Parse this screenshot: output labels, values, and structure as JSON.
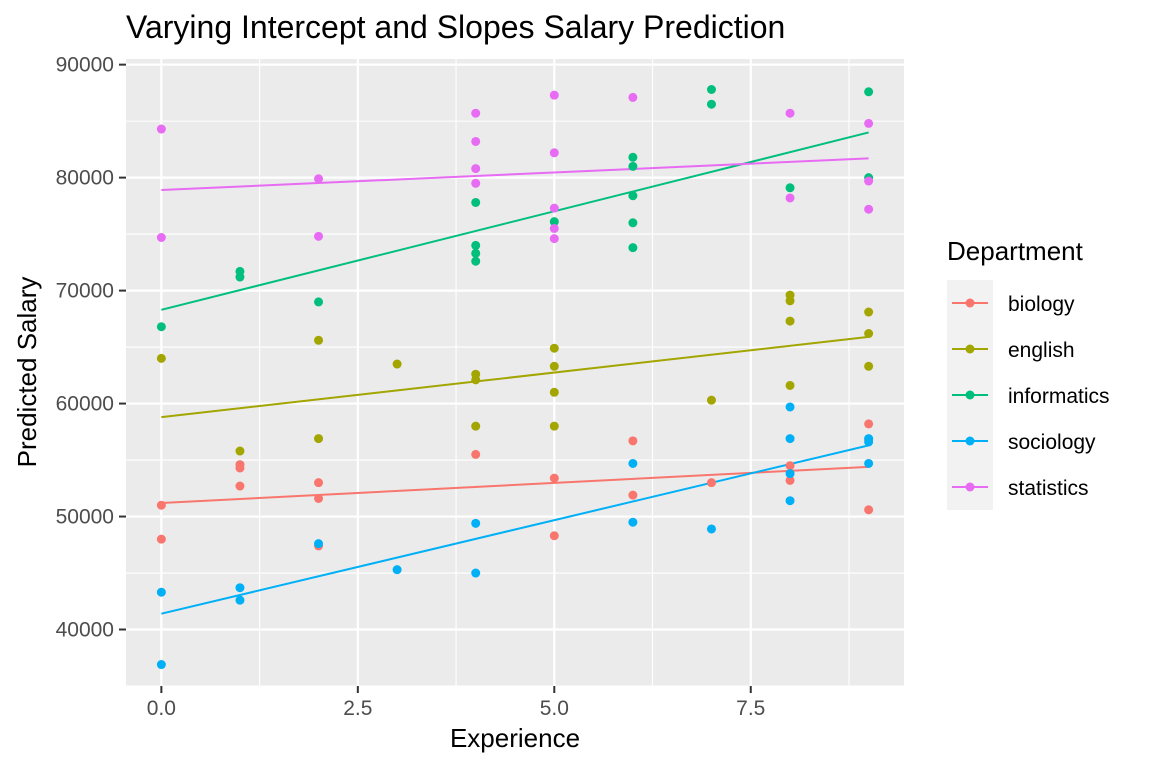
{
  "chart_data": {
    "type": "scatter",
    "title": "Varying Intercept and Slopes Salary Prediction",
    "xlabel": "Experience",
    "ylabel": "Predicted Salary",
    "xlim": [
      -0.45,
      9.45
    ],
    "ylim": [
      35000,
      90500
    ],
    "x_ticks": [
      0,
      2.5,
      5,
      7.5
    ],
    "x_tick_labels": [
      "0.0",
      "2.5",
      "5.0",
      "7.5"
    ],
    "y_ticks": [
      40000,
      50000,
      60000,
      70000,
      80000,
      90000
    ],
    "y_tick_labels": [
      "40000",
      "50000",
      "60000",
      "70000",
      "80000",
      "90000"
    ],
    "grid": true,
    "background": "#ebebeb",
    "legend": {
      "title": "Department",
      "position": "right"
    },
    "series": [
      {
        "name": "biology",
        "color": "#f8766d",
        "line": {
          "x": [
            0,
            9
          ],
          "y": [
            51200,
            54400
          ]
        },
        "points": [
          [
            0,
            51000
          ],
          [
            0,
            48000
          ],
          [
            1,
            54600
          ],
          [
            1,
            54300
          ],
          [
            1,
            52700
          ],
          [
            2,
            53000
          ],
          [
            2,
            51600
          ],
          [
            2,
            47400
          ],
          [
            4,
            55500
          ],
          [
            5,
            53400
          ],
          [
            5,
            48300
          ],
          [
            6,
            56700
          ],
          [
            6,
            51900
          ],
          [
            7,
            53000
          ],
          [
            8,
            53200
          ],
          [
            8,
            54500
          ],
          [
            9,
            58200
          ],
          [
            9,
            56800
          ],
          [
            9,
            50600
          ]
        ]
      },
      {
        "name": "english",
        "color": "#a3a500",
        "line": {
          "x": [
            0,
            9
          ],
          "y": [
            58800,
            65900
          ]
        },
        "points": [
          [
            0,
            64000
          ],
          [
            1,
            55800
          ],
          [
            2,
            65600
          ],
          [
            2,
            56900
          ],
          [
            3,
            63500
          ],
          [
            4,
            62600
          ],
          [
            4,
            62100
          ],
          [
            4,
            58000
          ],
          [
            5,
            64900
          ],
          [
            5,
            63300
          ],
          [
            5,
            61000
          ],
          [
            5,
            58000
          ],
          [
            7,
            60300
          ],
          [
            8,
            69600
          ],
          [
            8,
            69100
          ],
          [
            8,
            67300
          ],
          [
            8,
            61600
          ],
          [
            9,
            68100
          ],
          [
            9,
            66200
          ],
          [
            9,
            63300
          ]
        ]
      },
      {
        "name": "informatics",
        "color": "#00bf7d",
        "line": {
          "x": [
            0,
            9
          ],
          "y": [
            68300,
            84000
          ]
        },
        "points": [
          [
            0,
            66800
          ],
          [
            1,
            71700
          ],
          [
            1,
            71200
          ],
          [
            2,
            69000
          ],
          [
            4,
            77800
          ],
          [
            4,
            74000
          ],
          [
            4,
            73300
          ],
          [
            4,
            72600
          ],
          [
            5,
            76100
          ],
          [
            6,
            81800
          ],
          [
            6,
            81000
          ],
          [
            6,
            78400
          ],
          [
            6,
            76000
          ],
          [
            6,
            73800
          ],
          [
            7,
            87800
          ],
          [
            7,
            86500
          ],
          [
            8,
            79100
          ],
          [
            9,
            87600
          ],
          [
            9,
            80000
          ]
        ]
      },
      {
        "name": "sociology",
        "color": "#00b0f6",
        "line": {
          "x": [
            0,
            9
          ],
          "y": [
            41400,
            56300
          ]
        },
        "points": [
          [
            0,
            43300
          ],
          [
            0,
            36900
          ],
          [
            1,
            43700
          ],
          [
            1,
            42600
          ],
          [
            2,
            47600
          ],
          [
            3,
            45300
          ],
          [
            4,
            49400
          ],
          [
            4,
            45000
          ],
          [
            6,
            54700
          ],
          [
            6,
            49500
          ],
          [
            7,
            48900
          ],
          [
            8,
            59700
          ],
          [
            8,
            56900
          ],
          [
            8,
            53800
          ],
          [
            8,
            51400
          ],
          [
            9,
            56900
          ],
          [
            9,
            56600
          ],
          [
            9,
            54700
          ]
        ]
      },
      {
        "name": "statistics",
        "color": "#e76bf3",
        "line": {
          "x": [
            0,
            9
          ],
          "y": [
            78900,
            81700
          ]
        },
        "points": [
          [
            0,
            84300
          ],
          [
            0,
            74700
          ],
          [
            2,
            79900
          ],
          [
            2,
            74800
          ],
          [
            4,
            85700
          ],
          [
            4,
            83200
          ],
          [
            4,
            80800
          ],
          [
            4,
            79500
          ],
          [
            5,
            87300
          ],
          [
            5,
            82200
          ],
          [
            5,
            77300
          ],
          [
            5,
            75500
          ],
          [
            5,
            74600
          ],
          [
            6,
            87100
          ],
          [
            8,
            85700
          ],
          [
            8,
            78200
          ],
          [
            9,
            84800
          ],
          [
            9,
            79700
          ],
          [
            9,
            77200
          ]
        ]
      }
    ]
  }
}
